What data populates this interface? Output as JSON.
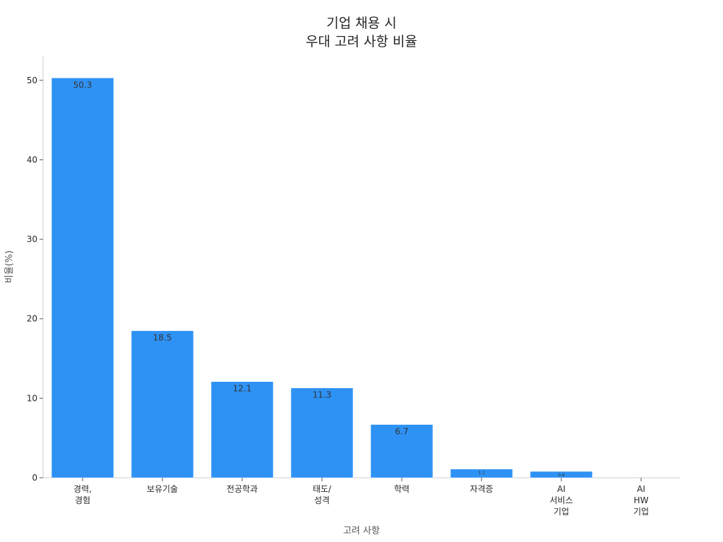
{
  "chart_data": {
    "type": "bar",
    "title_lines": [
      "기업 채용 시",
      "우대 고려 사항 비율"
    ],
    "xlabel": "고려 사항",
    "ylabel": "비율(%)",
    "categories": [
      [
        "경력,",
        "경험"
      ],
      [
        "보유기술"
      ],
      [
        "전공학과"
      ],
      [
        "태도/",
        "성격"
      ],
      [
        "학력"
      ],
      [
        "자격증"
      ],
      [
        "AI",
        "서비스",
        "기업"
      ],
      [
        "AI",
        "HW",
        "기업"
      ]
    ],
    "values": [
      50.3,
      18.5,
      12.1,
      11.3,
      6.7,
      1.1,
      0.8,
      0
    ],
    "data_labels": [
      "50.3",
      "18.5",
      "12.1",
      "11.3",
      "6.7",
      "1.1",
      "0.8",
      ""
    ],
    "ylim": [
      0,
      53
    ],
    "yticks": [
      0,
      10,
      20,
      30,
      40,
      50
    ],
    "bar_color": "#2e92f5",
    "grid": false,
    "legend": "none"
  }
}
